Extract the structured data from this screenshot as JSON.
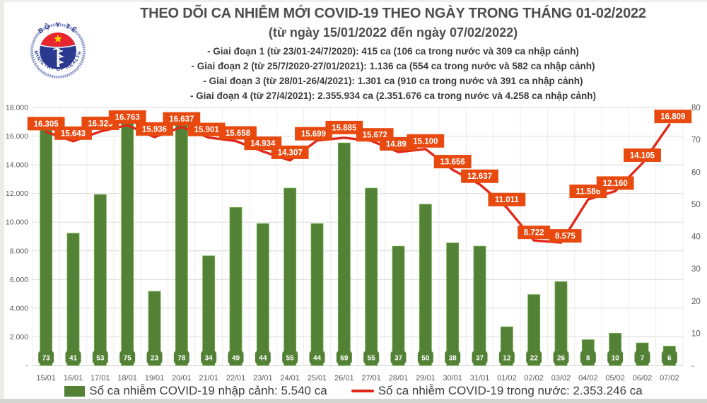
{
  "header": {
    "title": "THEO DÕI CA NHIỄM MỚI COVID-19 THEO NGÀY TRONG THÁNG 01-02/2022",
    "subtitle": "(từ ngày 15/01/2022 đến ngày 07/02/2022)",
    "phases": [
      "- Giai đoạn 1 (từ 23/01-24/7/2020): 415 ca (106 ca trong nước và 309 ca nhập cảnh)",
      "- Giai đoạn 2 (từ 25/7/2020-27/01/2021): 1.136 ca (554 ca trong nước và 582 ca nhập cảnh)",
      "- Giai đoạn 3 (từ 28/01-26/4/2021): 1.301 ca (910 ca trong nước và 391 ca nhập cảnh)",
      "- Giai đoạn 4 (từ 27/4/2021): 2.355.934 ca (2.351.676 ca trong nước và 4.258 ca nhập cảnh)"
    ]
  },
  "logo": {
    "top_text": "BỘ Y TẾ",
    "bottom_text": "MINISTRY OF HEALTH"
  },
  "legend": {
    "bar_label": "Số ca nhiễm COVID-19 nhập cảnh: 5.540 ca",
    "line_label": "Số ca nhiễm COVID-19 trong nước: 2.353.246 ca"
  },
  "colors": {
    "bar": "#538135",
    "bar_border": "#6fae4e",
    "badge": "#538135",
    "line": "#e0281a",
    "label_box": "#e8490f",
    "grid_h": "#dcdcdc",
    "grid_v": "#ececec",
    "baseline": "#c9c9c9",
    "axis_text": "#595959",
    "label_text": "#ffffff"
  },
  "chart_data": {
    "type": "bar+line combo",
    "categories": [
      "15/01",
      "16/01",
      "17/01",
      "18/01",
      "19/01",
      "20/01",
      "21/01",
      "22/01",
      "23/01",
      "24/01",
      "25/01",
      "26/01",
      "27/01",
      "28/01",
      "29/01",
      "30/01",
      "31/01",
      "01/02",
      "02/02",
      "03/02",
      "04/02",
      "05/02",
      "06/02",
      "07/02"
    ],
    "series": [
      {
        "name": "Số ca nhiễm COVID-19 nhập cảnh",
        "type": "bar",
        "axis": "right",
        "values": [
          73,
          41,
          53,
          75,
          23,
          78,
          34,
          49,
          44,
          55,
          44,
          69,
          55,
          37,
          50,
          38,
          37,
          12,
          22,
          26,
          8,
          10,
          7,
          6
        ]
      },
      {
        "name": "Số ca nhiễm COVID-19 trong nước",
        "type": "line",
        "axis": "left",
        "values": [
          16305,
          15643,
          16325,
          16763,
          15936,
          16637,
          15901,
          15658,
          14934,
          14307,
          15699,
          15885,
          15672,
          14892,
          15100,
          13656,
          12637,
          11011,
          8722,
          8575,
          11586,
          12160,
          14105,
          16809
        ],
        "labels": [
          "16.305",
          "15.643",
          "16.325",
          "16.763",
          "15.936",
          "16.637",
          "15.901",
          "15.658",
          "14.934",
          "14.307",
          "15.699",
          "15.885",
          "15.672",
          "14.892",
          "15.100",
          "13.656",
          "12.637",
          "11.011",
          "8.722",
          "8.575",
          "11.586",
          "12.160",
          "14.105",
          "16.809"
        ]
      }
    ],
    "left_axis": {
      "max": 18000,
      "tick_labels": [
        "18.000",
        "16.000",
        "14.000",
        "12.000",
        "10.000",
        "8.000",
        "6.000",
        "4.000",
        "2.000",
        "-"
      ],
      "tick_values": [
        18000,
        16000,
        14000,
        12000,
        10000,
        8000,
        6000,
        4000,
        2000,
        0
      ]
    },
    "right_axis": {
      "max": 80,
      "tick_labels": [
        "80",
        "70",
        "60",
        "50",
        "40",
        "30",
        "20",
        "10",
        "-"
      ],
      "tick_values": [
        80,
        70,
        60,
        50,
        40,
        30,
        20,
        10,
        0
      ]
    },
    "grid": "horizontal and vertical light gray",
    "legend_position": "bottom center",
    "label_offsets": {
      "6": [
        -3,
        0
      ],
      "7": [
        3,
        0
      ],
      "10": [
        -5,
        2
      ],
      "11": [
        0,
        -3
      ],
      "12": [
        5,
        3
      ],
      "19": [
        6,
        2
      ],
      "23": [
        5,
        0
      ]
    }
  }
}
